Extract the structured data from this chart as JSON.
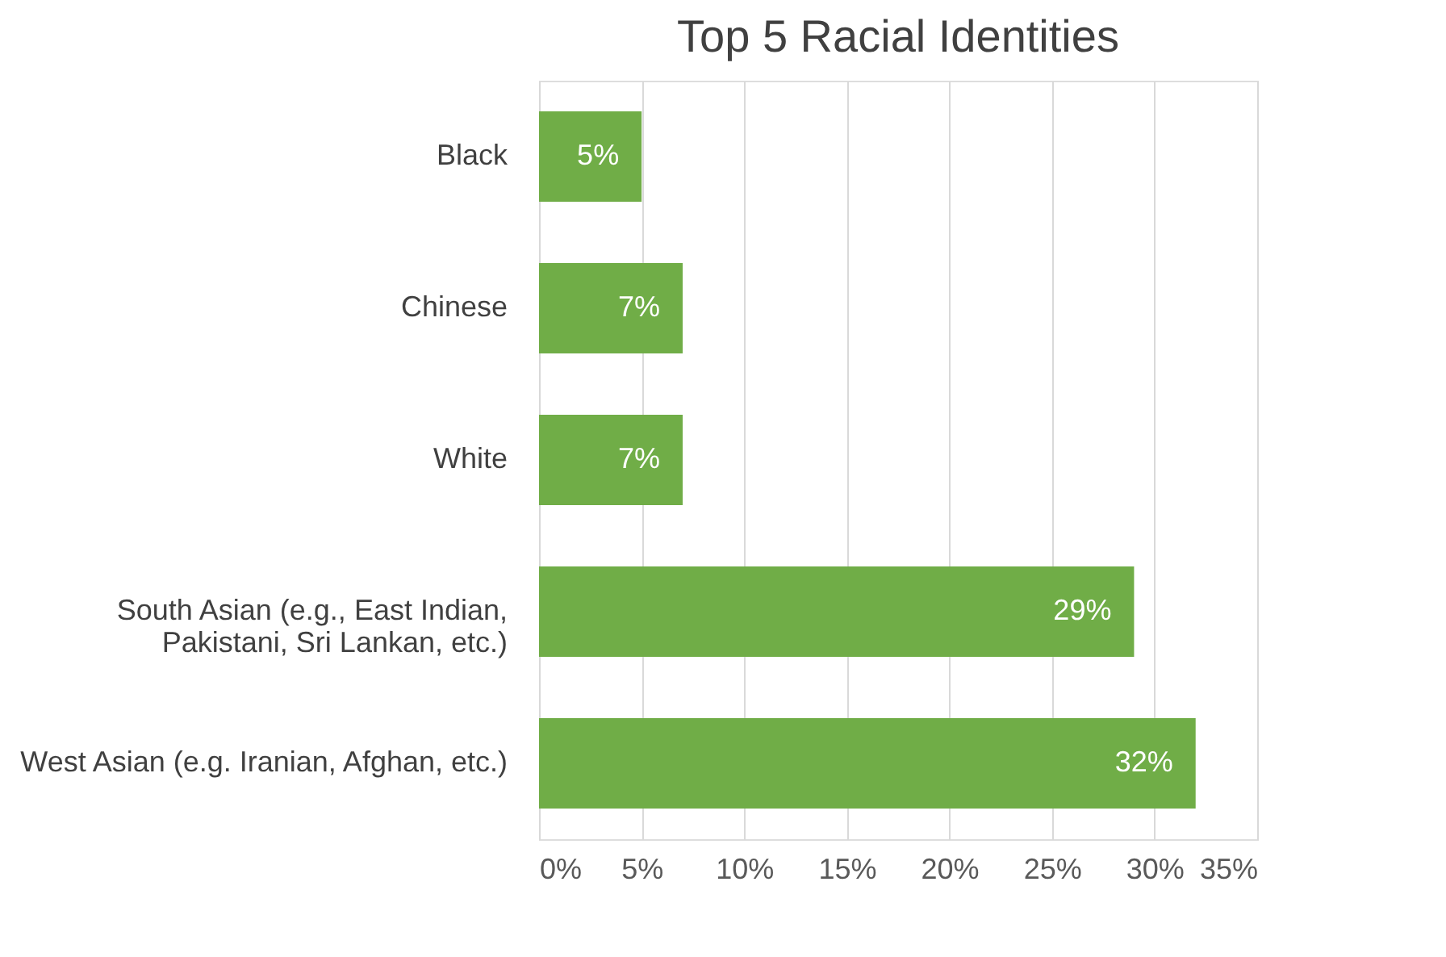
{
  "chart_data": {
    "type": "bar",
    "orientation": "horizontal",
    "title": "Top 5 Racial Identities",
    "categories": [
      "Black",
      "Chinese",
      "White",
      "South Asian (e.g., East Indian, Pakistani, Sri Lankan, etc.)",
      "West Asian (e.g. Iranian, Afghan, etc.)"
    ],
    "values": [
      5,
      7,
      7,
      29,
      32
    ],
    "color": "#70ad47",
    "value_labels": [
      "5%",
      "7%",
      "7%",
      "29%",
      "32%"
    ],
    "xlim": [
      0,
      35
    ],
    "xticks": [
      {
        "value": 0,
        "label": "0%"
      },
      {
        "value": 5,
        "label": "5%"
      },
      {
        "value": 10,
        "label": "10%"
      },
      {
        "value": 15,
        "label": "15%"
      },
      {
        "value": 20,
        "label": "20%"
      },
      {
        "value": 25,
        "label": "25%"
      },
      {
        "value": 30,
        "label": "30%"
      },
      {
        "value": 35,
        "label": "35%"
      }
    ],
    "grid": "x"
  }
}
